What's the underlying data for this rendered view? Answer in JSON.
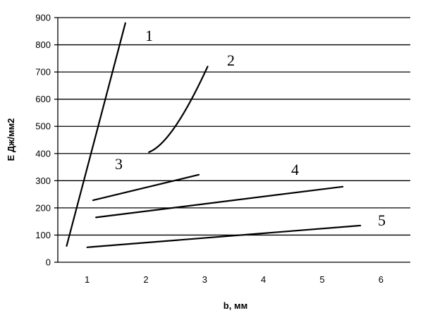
{
  "chart_data": {
    "type": "line",
    "title": "",
    "xlabel": "b, мм",
    "ylabel": "E Дж/мм2",
    "xlim": [
      0.5,
      6.5
    ],
    "ylim": [
      0,
      900
    ],
    "x_ticks": [
      1,
      2,
      3,
      4,
      5,
      6
    ],
    "y_ticks": [
      0,
      100,
      200,
      300,
      400,
      500,
      600,
      700,
      800,
      900
    ],
    "grid": {
      "horizontal": true,
      "vertical": false
    },
    "legend": "none",
    "series": [
      {
        "name": "1",
        "curve": "straight",
        "points": [
          [
            0.65,
            60
          ],
          [
            1.65,
            880
          ]
        ]
      },
      {
        "name": "2",
        "curve": "smooth",
        "points": [
          [
            2.05,
            405
          ],
          [
            2.5,
            500
          ],
          [
            3.05,
            720
          ]
        ]
      },
      {
        "name": "3",
        "curve": "straight",
        "points": [
          [
            1.1,
            228
          ],
          [
            2.9,
            322
          ]
        ]
      },
      {
        "name": "4",
        "curve": "straight",
        "points": [
          [
            1.15,
            165
          ],
          [
            5.35,
            278
          ]
        ]
      },
      {
        "name": "5",
        "curve": "straight",
        "points": [
          [
            1.0,
            55
          ],
          [
            5.65,
            135
          ]
        ]
      }
    ],
    "series_labels": [
      "1",
      "2",
      "3",
      "4",
      "5"
    ]
  }
}
